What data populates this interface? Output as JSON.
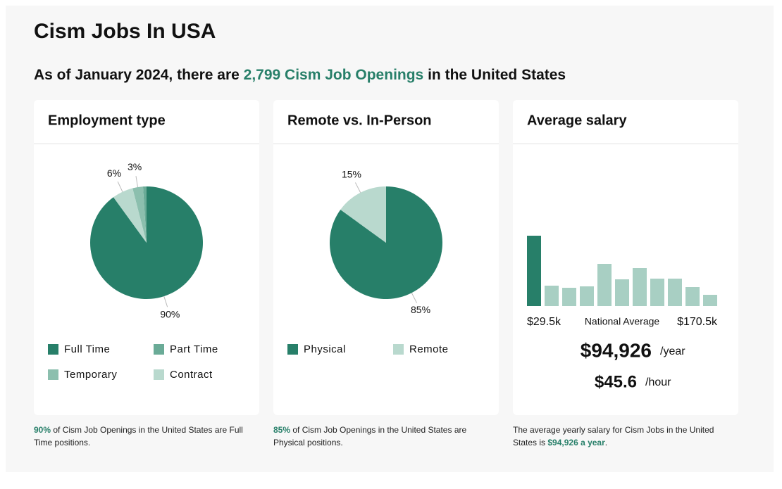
{
  "header": {
    "title": "Cism Jobs In USA",
    "subtitle": [
      "As of January 2024, there are ",
      "2,799 Cism Job Openings",
      " in the United States"
    ]
  },
  "chart_data": [
    {
      "type": "pie",
      "title": "Employment type",
      "categories": [
        "Full Time",
        "Part Time",
        "Temporary",
        "Contract"
      ],
      "values": [
        90,
        1,
        3,
        6
      ],
      "value_labels": [
        "90%",
        null,
        "3%",
        "6%"
      ],
      "colors": [
        "#277f69",
        "#6aab97",
        "#8cbfae",
        "#b9d9ce"
      ]
    },
    {
      "type": "pie",
      "title": "Remote vs. In-Person",
      "categories": [
        "Physical",
        "Remote"
      ],
      "values": [
        85,
        15
      ],
      "value_labels": [
        "85%",
        "15%"
      ],
      "colors": [
        "#277f69",
        "#b9d9ce"
      ]
    },
    {
      "type": "bar",
      "title": "Average salary",
      "values": [
        100,
        29,
        26,
        28,
        60,
        38,
        54,
        39,
        39,
        27,
        16
      ],
      "colors": [
        "#277f69",
        "#a8cfc3",
        "#a8cfc3",
        "#a8cfc3",
        "#a8cfc3",
        "#a8cfc3",
        "#a8cfc3",
        "#a8cfc3",
        "#a8cfc3",
        "#a8cfc3",
        "#a8cfc3"
      ],
      "range_labels": {
        "min": "$29.5k",
        "center": "National Average",
        "max": "$170.5k"
      },
      "salary": {
        "year": "$94,926",
        "year_unit": "/year",
        "hour": "$45.6",
        "hour_unit": "/hour"
      }
    }
  ],
  "footnotes": [
    [
      "90%",
      " of Cism Job Openings in the United States are Full Time positions."
    ],
    [
      "85%",
      " of Cism Job Openings in the United States are Physical positions."
    ],
    [
      "The average yearly salary for Cism Jobs in the United States is ",
      "$94,926 a year",
      "."
    ]
  ]
}
